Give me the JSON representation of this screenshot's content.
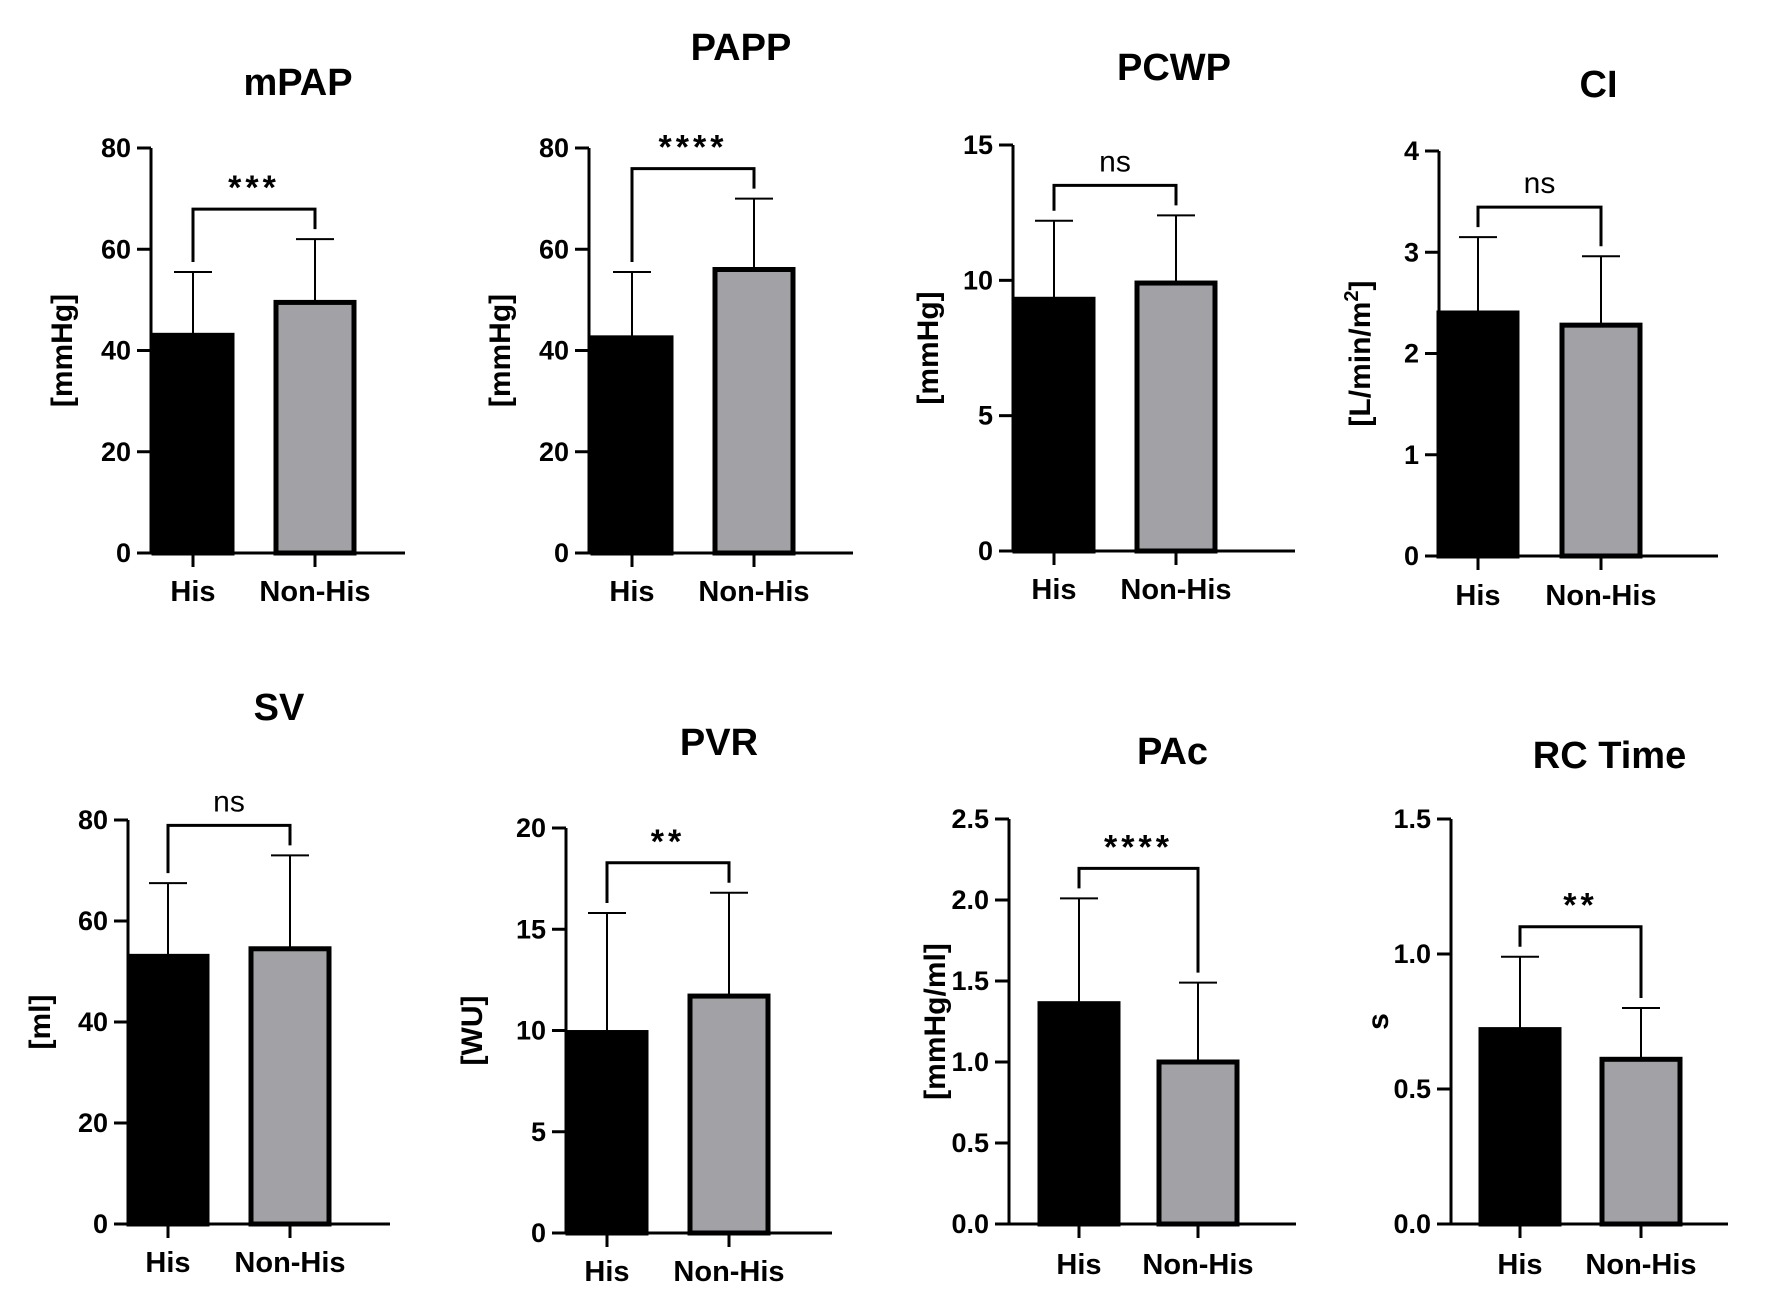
{
  "colors": {
    "his": "#000000",
    "non_his": "#a2a1a6",
    "stroke": "#000000"
  },
  "chart_data": [
    {
      "type": "bar",
      "title": "mPAP",
      "ylabel": "[mmHg]",
      "ylim": [
        0,
        80
      ],
      "yticks": [
        "0",
        "20",
        "40",
        "60",
        "80"
      ],
      "categories": [
        "His",
        "Non-His"
      ],
      "values": [
        43,
        49.5
      ],
      "errors": [
        12.5,
        12.5
      ],
      "significance": "***"
    },
    {
      "type": "bar",
      "title": "PAPP",
      "ylabel": "[mmHg]",
      "ylim": [
        0,
        80
      ],
      "yticks": [
        "0",
        "20",
        "40",
        "60",
        "80"
      ],
      "categories": [
        "His",
        "Non-His"
      ],
      "values": [
        42.5,
        56
      ],
      "errors": [
        13,
        14
      ],
      "significance": "****"
    },
    {
      "type": "bar",
      "title": "PCWP",
      "ylabel": "[mmHg]",
      "ylim": [
        0,
        15
      ],
      "yticks": [
        "0",
        "5",
        "10",
        "15"
      ],
      "categories": [
        "His",
        "Non-His"
      ],
      "values": [
        9.3,
        9.9
      ],
      "errors": [
        2.9,
        2.5
      ],
      "significance": "ns"
    },
    {
      "type": "bar",
      "title": "CI",
      "ylabel": "[L/min/m",
      "ylabel_sup": "2",
      "ylabel_end": "]",
      "ylim": [
        0,
        4
      ],
      "yticks": [
        "0",
        "1",
        "2",
        "3",
        "4"
      ],
      "categories": [
        "His",
        "Non-His"
      ],
      "values": [
        2.4,
        2.28
      ],
      "errors": [
        0.75,
        0.68
      ],
      "significance": "ns"
    },
    {
      "type": "bar",
      "title": "SV",
      "ylabel": "[ml]",
      "ylim": [
        0,
        80
      ],
      "yticks": [
        "0",
        "20",
        "40",
        "60",
        "80"
      ],
      "categories": [
        "His",
        "Non-His"
      ],
      "values": [
        53,
        54.5
      ],
      "errors": [
        14.5,
        18.5
      ],
      "significance": "ns"
    },
    {
      "type": "bar",
      "title": "PVR",
      "ylabel": "[WU]",
      "ylim": [
        0,
        20
      ],
      "yticks": [
        "0",
        "5",
        "10",
        "15",
        "20"
      ],
      "categories": [
        "His",
        "Non-His"
      ],
      "values": [
        9.9,
        11.7
      ],
      "errors": [
        5.9,
        5.1
      ],
      "significance": "**"
    },
    {
      "type": "bar",
      "title": "PAc",
      "ylabel": "[mmHg/ml]",
      "ylim": [
        0,
        2.5
      ],
      "yticks": [
        "0.0",
        "0.5",
        "1.0",
        "1.5",
        "2.0",
        "2.5"
      ],
      "categories": [
        "His",
        "Non-His"
      ],
      "values": [
        1.36,
        1.0
      ],
      "errors": [
        0.65,
        0.49
      ],
      "significance": "****"
    },
    {
      "type": "bar",
      "title": "RC Time",
      "ylabel": "s",
      "ylim": [
        0,
        1.5
      ],
      "yticks": [
        "0.0",
        "0.5",
        "1.0",
        "1.5"
      ],
      "categories": [
        "His",
        "Non-His"
      ],
      "values": [
        0.72,
        0.61
      ],
      "errors": [
        0.27,
        0.19
      ],
      "significance": "**"
    }
  ]
}
